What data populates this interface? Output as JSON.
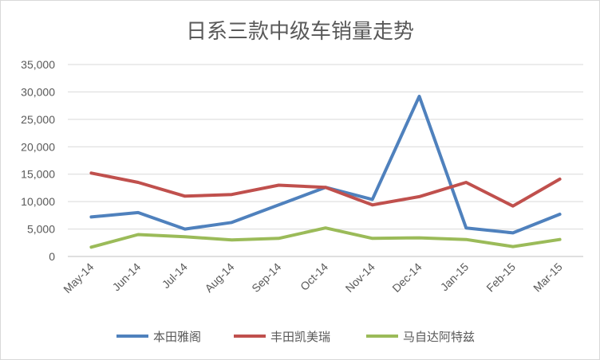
{
  "chart_data": {
    "type": "line",
    "title": "日系三款中级车销量走势",
    "xlabel": "",
    "ylabel": "",
    "categories": [
      "May-14",
      "Jun-14",
      "Jul-14",
      "Aug-14",
      "Sep-14",
      "Oct-14",
      "Nov-14",
      "Dec-14",
      "Jan-15",
      "Feb-15",
      "Mar-15"
    ],
    "ylim": [
      0,
      35000
    ],
    "yticks": [
      "0",
      "5,000",
      "10,000",
      "15,000",
      "20,000",
      "25,000",
      "30,000",
      "35,000"
    ],
    "grid": true,
    "legend_position": "bottom",
    "series": [
      {
        "name": "本田雅阁",
        "color": "#4f81bd",
        "values": [
          7200,
          8000,
          5000,
          6200,
          9400,
          12600,
          10400,
          29200,
          5200,
          4300,
          7700
        ]
      },
      {
        "name": "丰田凯美瑞",
        "color": "#c0504d",
        "values": [
          15200,
          13500,
          11000,
          11300,
          13000,
          12600,
          9400,
          10900,
          13500,
          9200,
          14100
        ]
      },
      {
        "name": "马自达阿特兹",
        "color": "#9bbb59",
        "values": [
          1700,
          4000,
          3600,
          3000,
          3300,
          5200,
          3300,
          3400,
          3100,
          1800,
          3100
        ]
      }
    ]
  }
}
